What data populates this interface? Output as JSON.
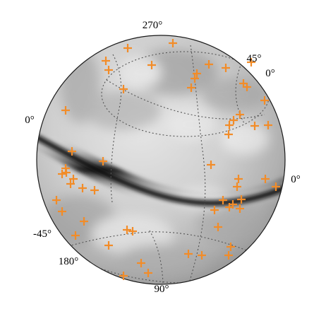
{
  "chart_data": {
    "type": "scatter",
    "title": "",
    "xlabel": "",
    "ylabel": "",
    "projection": "orthographic sky sphere",
    "background": "grayscale all-sky map with dark band along the galactic plane",
    "grid": true,
    "legend": "none",
    "marker": "+",
    "marker_color": "#f28c28",
    "grid_color": "#555555",
    "tick_labels": {
      "top": "270°",
      "upper_right": "45°",
      "upper_right_inner": "0°",
      "left": "0°",
      "right": "0°",
      "lower_left": "-45°",
      "bottom_left": "180°",
      "bottom": "90°"
    },
    "series": [
      {
        "values": [
          [
            154,
            99
          ],
          [
            181,
            68
          ],
          [
            150,
            86
          ],
          [
            245,
            61
          ],
          [
            215,
            92
          ],
          [
            296,
            91
          ],
          [
            175,
            126
          ],
          [
            320,
            96
          ],
          [
            356,
            88
          ],
          [
            279,
            104
          ],
          [
            276,
            111
          ],
          [
            271,
            124
          ],
          [
            345,
            118
          ],
          [
            350,
            123
          ],
          [
            93,
            156
          ],
          [
            375,
            142
          ],
          [
            340,
            162
          ],
          [
            331,
            170
          ],
          [
            325,
            177
          ],
          [
            324,
            190
          ],
          [
            361,
            178
          ],
          [
            380,
            177
          ],
          [
            102,
            214
          ],
          [
            146,
            228
          ],
          [
            299,
            233
          ],
          [
            93,
            238
          ],
          [
            94,
            244
          ],
          [
            88,
            246
          ],
          [
            104,
            253
          ],
          [
            100,
            260
          ],
          [
            117,
            266
          ],
          [
            134,
            269
          ],
          [
            338,
            253
          ],
          [
            336,
            264
          ],
          [
            376,
            253
          ],
          [
            391,
            264
          ],
          [
            80,
            283
          ],
          [
            316,
            283
          ],
          [
            330,
            289
          ],
          [
            325,
            293
          ],
          [
            342,
            282
          ],
          [
            340,
            295
          ],
          [
            304,
            297
          ],
          [
            88,
            299
          ],
          [
            119,
            313
          ],
          [
            180,
            325
          ],
          [
            188,
            327
          ],
          [
            107,
            333
          ],
          [
            309,
            321
          ],
          [
            154,
            347
          ],
          [
            327,
            349
          ],
          [
            324,
            361
          ],
          [
            267,
            359
          ],
          [
            286,
            361
          ],
          [
            200,
            372
          ],
          [
            210,
            386
          ],
          [
            175,
            390
          ]
        ]
      }
    ]
  }
}
